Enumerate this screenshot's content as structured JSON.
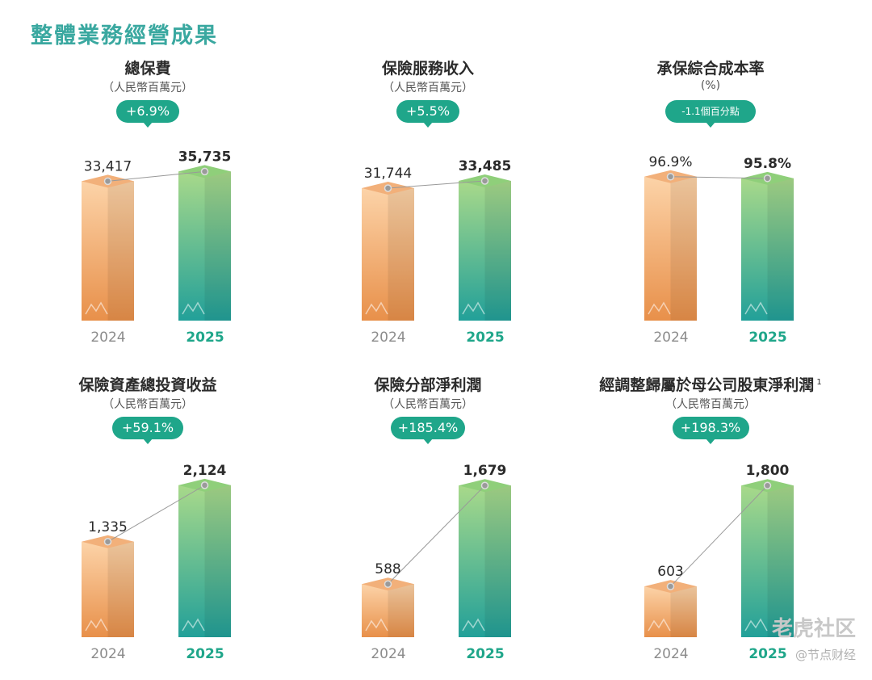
{
  "page_title": "整體業務經營成果",
  "chart_data": [
    {
      "type": "bar",
      "title": "總保費",
      "subtitle": "（人民幣百萬元）",
      "badge": "+6.9%",
      "badge_small": false,
      "categories": [
        "2024",
        "2025"
      ],
      "values": [
        33417,
        35735
      ],
      "value_labels": [
        "33,417",
        "35,735"
      ],
      "ylim": [
        0,
        42000
      ]
    },
    {
      "type": "bar",
      "title": "保險服務收入",
      "subtitle": "（人民幣百萬元）",
      "badge": "+5.5%",
      "badge_small": false,
      "categories": [
        "2024",
        "2025"
      ],
      "values": [
        31744,
        33485
      ],
      "value_labels": [
        "31,744",
        "33,485"
      ],
      "ylim": [
        0,
        42000
      ]
    },
    {
      "type": "bar",
      "title": "承保綜合成本率",
      "subtitle": "(%)",
      "badge": "-1.1個百分點",
      "badge_small": true,
      "categories": [
        "2024",
        "2025"
      ],
      "values": [
        96.9,
        95.8
      ],
      "value_labels": [
        "96.9%",
        "95.8%"
      ],
      "ylim": [
        0,
        118
      ]
    },
    {
      "type": "bar",
      "title": "保險資產總投資收益",
      "subtitle": "（人民幣百萬元）",
      "badge": "+59.1%",
      "badge_small": false,
      "categories": [
        "2024",
        "2025"
      ],
      "values": [
        1335,
        2124
      ],
      "value_labels": [
        "1,335",
        "2,124"
      ],
      "ylim": [
        0,
        2450
      ]
    },
    {
      "type": "bar",
      "title": "保險分部淨利潤",
      "subtitle": "（人民幣百萬元）",
      "badge": "+185.4%",
      "badge_small": false,
      "categories": [
        "2024",
        "2025"
      ],
      "values": [
        588,
        1679
      ],
      "value_labels": [
        "588",
        "1,679"
      ],
      "ylim": [
        0,
        1940
      ]
    },
    {
      "type": "bar",
      "title": "經調整歸屬於母公司股東淨利潤",
      "title_sup": "1",
      "subtitle": "（人民幣百萬元）",
      "badge": "+198.3%",
      "badge_small": false,
      "categories": [
        "2024",
        "2025"
      ],
      "values": [
        603,
        1800
      ],
      "value_labels": [
        "603",
        "1,800"
      ],
      "ylim": [
        0,
        2080
      ]
    }
  ],
  "watermark": {
    "main": "老虎社区",
    "sub": "@节点财经"
  },
  "colors": {
    "accent": "#1fa68a",
    "title": "#3aa8a0",
    "bar_2024_top": "#fcd3a8",
    "bar_2024_bottom": "#e8904a",
    "bar_2025_top": "#a8d98a",
    "bar_2025_bottom": "#22a099"
  }
}
